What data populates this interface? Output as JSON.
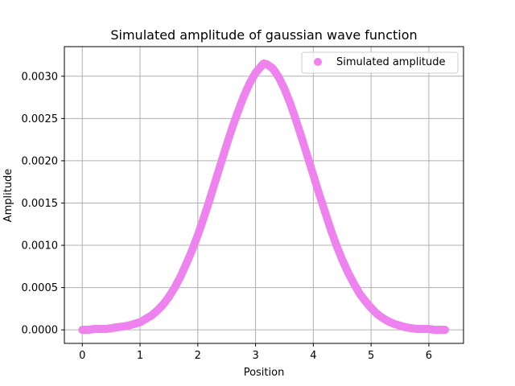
{
  "chart_data": {
    "type": "scatter",
    "title": "Simulated amplitude of gaussian wave function",
    "xlabel": "Position",
    "ylabel": "Amplitude",
    "xlim": [
      -0.31,
      6.6
    ],
    "ylim": [
      -0.00016,
      0.00335
    ],
    "xticks": [
      0,
      1,
      2,
      3,
      4,
      5,
      6
    ],
    "xtick_labels": [
      "0",
      "1",
      "2",
      "3",
      "4",
      "5",
      "6"
    ],
    "yticks": [
      0,
      0.0005,
      0.001,
      0.0015,
      0.002,
      0.0025,
      0.003
    ],
    "ytick_labels": [
      "0.0000",
      "0.0005",
      "0.0010",
      "0.0015",
      "0.0020",
      "0.0025",
      "0.0030"
    ],
    "grid": true,
    "legend_position": "top-right",
    "series": [
      {
        "name": "Simulated amplitude",
        "color": "#ee82ee",
        "x": [
          0,
          0.1,
          0.2,
          0.3,
          0.4,
          0.5,
          0.6,
          0.7,
          0.8,
          0.9,
          1,
          1.1,
          1.2,
          1.3,
          1.4,
          1.5,
          1.6,
          1.7,
          1.8,
          1.9,
          2,
          2.1,
          2.2,
          2.3,
          2.4,
          2.5,
          2.6,
          2.7,
          2.8,
          2.9,
          3,
          3.1,
          3.14,
          3.2,
          3.3,
          3.4,
          3.5,
          3.6,
          3.7,
          3.8,
          3.9,
          4,
          4.1,
          4.2,
          4.3,
          4.4,
          4.5,
          4.6,
          4.7,
          4.8,
          4.9,
          5,
          5.1,
          5.2,
          5.3,
          5.4,
          5.5,
          5.6,
          5.7,
          5.8,
          5.9,
          6,
          6.1,
          6.2,
          6.28
        ],
        "y": [
          0,
          0,
          1e-05,
          1e-05,
          1e-05,
          2e-05,
          3e-05,
          4e-05,
          5e-05,
          7e-05,
          9e-05,
          0.00013,
          0.00017,
          0.00023,
          0.0003,
          0.00039,
          0.0005,
          0.00063,
          0.00078,
          0.00094,
          0.00112,
          0.00132,
          0.00153,
          0.00175,
          0.00197,
          0.00219,
          0.0024,
          0.00259,
          0.00277,
          0.00292,
          0.00304,
          0.00312,
          0.00315,
          0.00314,
          0.00309,
          0.00299,
          0.00285,
          0.00268,
          0.00248,
          0.00227,
          0.00205,
          0.00183,
          0.00161,
          0.0014,
          0.00119,
          0.001,
          0.00083,
          0.00068,
          0.00055,
          0.00043,
          0.00034,
          0.00026,
          0.00019,
          0.00014,
          0.0001,
          7e-05,
          5e-05,
          3e-05,
          2e-05,
          1e-05,
          1e-05,
          1e-05,
          0,
          0,
          0
        ]
      }
    ]
  }
}
